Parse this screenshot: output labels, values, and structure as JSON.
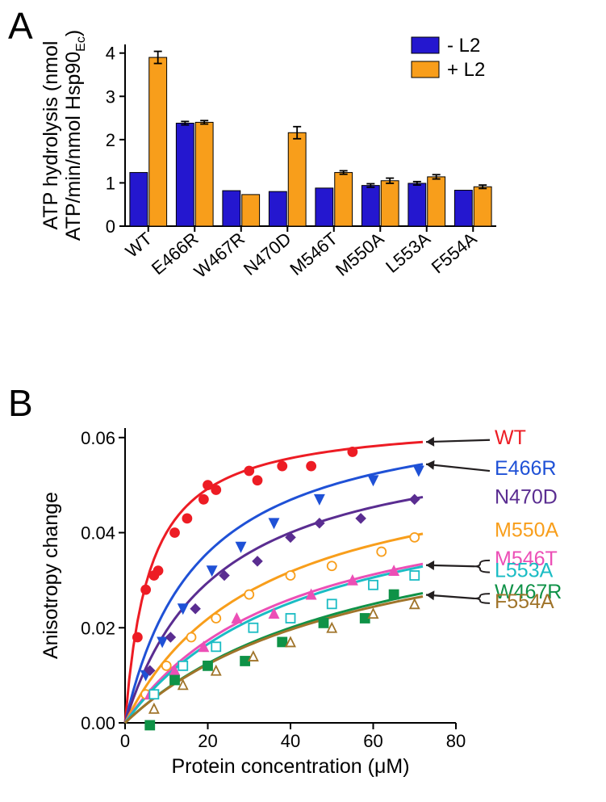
{
  "panels": {
    "A": "A",
    "B": "B"
  },
  "colors": {
    "blue": "#2417cf",
    "orange": "#f89e1b",
    "black": "#000000",
    "wt": "#ed1c24",
    "e466r": "#1f51d6",
    "n470d": "#5a2d91",
    "m550a": "#f89e1b",
    "m546t": "#ec4fb6",
    "l553a": "#1abcc4",
    "w467r": "#0f9247",
    "f554a": "#a0742a",
    "arrow": "#231f20"
  },
  "panelA": {
    "ylabel_1": "ATP hydrolysis (nmol",
    "ylabel_2_prefix": "ATP/min/nmol Hsp90",
    "ylabel_2_sub": "Ec",
    "ylabel_2_suffix": ")",
    "legend_minus": "- L2",
    "legend_plus": "+ L2",
    "ylim": [
      0,
      4.2
    ],
    "yticks": [
      0,
      1,
      2,
      3,
      4
    ],
    "bar_width": 0.38,
    "categories": [
      "WT",
      "E466R",
      "W467R",
      "N470D",
      "M546T",
      "M550A",
      "L553A",
      "F554A"
    ],
    "minus_values": [
      1.24,
      2.38,
      0.82,
      0.8,
      0.88,
      0.94,
      0.99,
      0.83
    ],
    "minus_err": [
      0.0,
      0.04,
      0.0,
      0.0,
      0.0,
      0.04,
      0.04,
      0.0
    ],
    "plus_values": [
      3.9,
      2.4,
      0.73,
      2.16,
      1.24,
      1.05,
      1.14,
      0.91
    ],
    "plus_err": [
      0.14,
      0.04,
      0.0,
      0.14,
      0.04,
      0.06,
      0.05,
      0.04
    ]
  },
  "panelB": {
    "xlabel": "Protein concentration (μM)",
    "ylabel": "Anisotropy change",
    "xlim": [
      0,
      80
    ],
    "ylim": [
      0,
      0.062
    ],
    "xticks": [
      0,
      20,
      40,
      60,
      80
    ],
    "yticks": [
      0.0,
      0.02,
      0.04,
      0.06
    ],
    "series": [
      {
        "id": "WT",
        "label": "WT",
        "colorKey": "wt",
        "marker": "circle",
        "fill": true,
        "A": 0.064,
        "Kd": 6.0,
        "points": [
          [
            3,
            0.018
          ],
          [
            5,
            0.028
          ],
          [
            7,
            0.031
          ],
          [
            8,
            0.032
          ],
          [
            12,
            0.04
          ],
          [
            15,
            0.043
          ],
          [
            19,
            0.047
          ],
          [
            20,
            0.05
          ],
          [
            22,
            0.049
          ],
          [
            30,
            0.053
          ],
          [
            32,
            0.051
          ],
          [
            38,
            0.054
          ],
          [
            45,
            0.054
          ],
          [
            55,
            0.057
          ]
        ]
      },
      {
        "id": "E466R",
        "label": "E466R",
        "colorKey": "e466r",
        "marker": "triangle-down",
        "fill": true,
        "A": 0.068,
        "Kd": 18.0,
        "points": [
          [
            5,
            0.01
          ],
          [
            9,
            0.017
          ],
          [
            14,
            0.024
          ],
          [
            21,
            0.032
          ],
          [
            28,
            0.037
          ],
          [
            36,
            0.042
          ],
          [
            47,
            0.047
          ],
          [
            60,
            0.051
          ],
          [
            71,
            0.053
          ]
        ]
      },
      {
        "id": "N470D",
        "label": "N470D",
        "colorKey": "n470d",
        "marker": "diamond",
        "fill": true,
        "A": 0.062,
        "Kd": 22.0,
        "points": [
          [
            6,
            0.011
          ],
          [
            11,
            0.018
          ],
          [
            17,
            0.024
          ],
          [
            24,
            0.031
          ],
          [
            32,
            0.034
          ],
          [
            40,
            0.039
          ],
          [
            47,
            0.042
          ],
          [
            57,
            0.043
          ],
          [
            70,
            0.047
          ]
        ]
      },
      {
        "id": "M550A",
        "label": "M550A",
        "colorKey": "m550a",
        "marker": "circle",
        "fill": false,
        "A": 0.058,
        "Kd": 33.0,
        "points": [
          [
            5,
            0.006
          ],
          [
            10,
            0.012
          ],
          [
            16,
            0.018
          ],
          [
            22,
            0.022
          ],
          [
            30,
            0.027
          ],
          [
            40,
            0.031
          ],
          [
            50,
            0.033
          ],
          [
            62,
            0.036
          ],
          [
            70,
            0.039
          ]
        ]
      },
      {
        "id": "M546T",
        "label": "M546T",
        "colorKey": "m546t",
        "marker": "triangle-up",
        "fill": true,
        "A": 0.052,
        "Kd": 40.0,
        "points": [
          [
            6,
            0.006
          ],
          [
            12,
            0.011
          ],
          [
            19,
            0.016
          ],
          [
            27,
            0.022
          ],
          [
            36,
            0.023
          ],
          [
            45,
            0.027
          ],
          [
            55,
            0.03
          ],
          [
            65,
            0.032
          ]
        ]
      },
      {
        "id": "L553A",
        "label": "L553A",
        "colorKey": "l553a",
        "marker": "square",
        "fill": false,
        "A": 0.053,
        "Kd": 44.0,
        "points": [
          [
            7,
            0.006
          ],
          [
            14,
            0.012
          ],
          [
            22,
            0.016
          ],
          [
            31,
            0.02
          ],
          [
            40,
            0.022
          ],
          [
            50,
            0.025
          ],
          [
            60,
            0.029
          ],
          [
            70,
            0.031
          ]
        ]
      },
      {
        "id": "W467R",
        "label": "W467R",
        "colorKey": "w467r",
        "marker": "square",
        "fill": true,
        "A": 0.05,
        "Kd": 60.0,
        "points": [
          [
            6,
            -0.0005
          ],
          [
            12,
            0.009
          ],
          [
            20,
            0.012
          ],
          [
            29,
            0.013
          ],
          [
            38,
            0.017
          ],
          [
            48,
            0.021
          ],
          [
            58,
            0.022
          ],
          [
            65,
            0.027
          ]
        ]
      },
      {
        "id": "F554A",
        "label": "F554A",
        "colorKey": "f554a",
        "marker": "triangle-up",
        "fill": false,
        "A": 0.048,
        "Kd": 58.0,
        "points": [
          [
            7,
            0.003
          ],
          [
            14,
            0.008
          ],
          [
            22,
            0.011
          ],
          [
            31,
            0.014
          ],
          [
            40,
            0.017
          ],
          [
            50,
            0.02
          ],
          [
            60,
            0.023
          ],
          [
            70,
            0.025
          ]
        ]
      }
    ],
    "label_y_positions": {
      "WT": 0.06,
      "E466R": 0.0535,
      "N470D": 0.0475,
      "M550A": 0.0405,
      "M546T": 0.0345,
      "L553A": 0.032,
      "W467R": 0.0275,
      "F554A": 0.0255
    },
    "arrows": [
      {
        "target": "WT",
        "fromLabel": true
      },
      {
        "target": "E466R",
        "fromLabel": true
      }
    ],
    "brackets": [
      {
        "top": "M546T",
        "bottom": "L553A"
      },
      {
        "top": "W467R",
        "bottom": "F554A"
      }
    ]
  }
}
